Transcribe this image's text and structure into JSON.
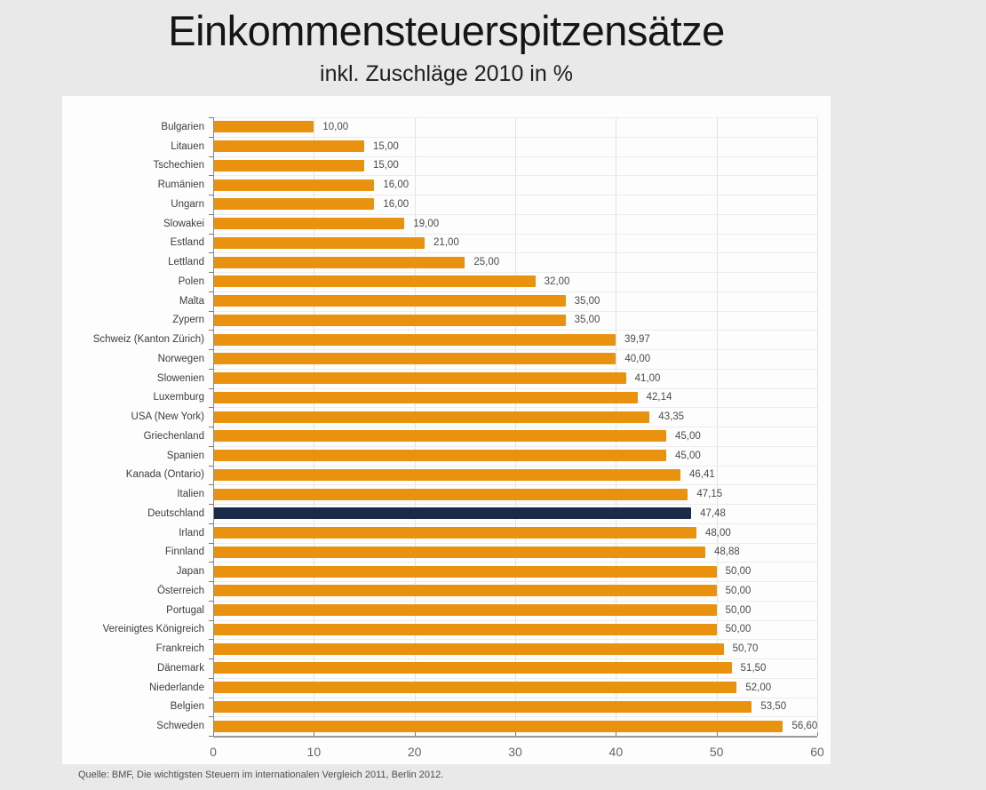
{
  "header": {
    "title": "Einkommensteuerspitzensätze",
    "subtitle": "inkl. Zuschläge 2010 in %"
  },
  "source": "Quelle: BMF, Die wichtigsten Steuern im internationalen Vergleich 2011, Berlin 2012.",
  "chart_data": {
    "type": "bar",
    "orientation": "horizontal",
    "title": "Einkommensteuerspitzensätze",
    "subtitle": "inkl. Zuschläge 2010 in %",
    "categories": [
      "Bulgarien",
      "Litauen",
      "Tschechien",
      "Rumänien",
      "Ungarn",
      "Slowakei",
      "Estland",
      "Lettland",
      "Polen",
      "Malta",
      "Zypern",
      "Schweiz (Kanton Zürich)",
      "Norwegen",
      "Slowenien",
      "Luxemburg",
      "USA (New York)",
      "Griechenland",
      "Spanien",
      "Kanada (Ontario)",
      "Italien",
      "Deutschland",
      "Irland",
      "Finnland",
      "Japan",
      "Österreich",
      "Portugal",
      "Vereinigtes Königreich",
      "Frankreich",
      "Dänemark",
      "Niederlande",
      "Belgien",
      "Schweden"
    ],
    "values": [
      10.0,
      15.0,
      15.0,
      16.0,
      16.0,
      19.0,
      21.0,
      25.0,
      32.0,
      35.0,
      35.0,
      39.97,
      40.0,
      41.0,
      42.14,
      43.35,
      45.0,
      45.0,
      46.41,
      47.15,
      47.48,
      48.0,
      48.88,
      50.0,
      50.0,
      50.0,
      50.0,
      50.7,
      51.5,
      52.0,
      53.5,
      56.6
    ],
    "value_labels": [
      "10,00",
      "15,00",
      "15,00",
      "16,00",
      "16,00",
      "19,00",
      "21,00",
      "25,00",
      "32,00",
      "35,00",
      "35,00",
      "39,97",
      "40,00",
      "41,00",
      "42,14",
      "43,35",
      "45,00",
      "45,00",
      "46,41",
      "47,15",
      "47,48",
      "48,00",
      "48,88",
      "50,00",
      "50,00",
      "50,00",
      "50,00",
      "50,70",
      "51,50",
      "52,00",
      "53,50",
      "56,60"
    ],
    "highlight_index": 20,
    "highlight_category": "Deutschland",
    "bar_color": "#E8920F",
    "highlight_color": "#1C2A4A",
    "xlim": [
      0,
      60
    ],
    "x_ticks": [
      "0",
      "10",
      "20",
      "30",
      "40",
      "50",
      "60"
    ],
    "grid": true,
    "legend": false
  }
}
